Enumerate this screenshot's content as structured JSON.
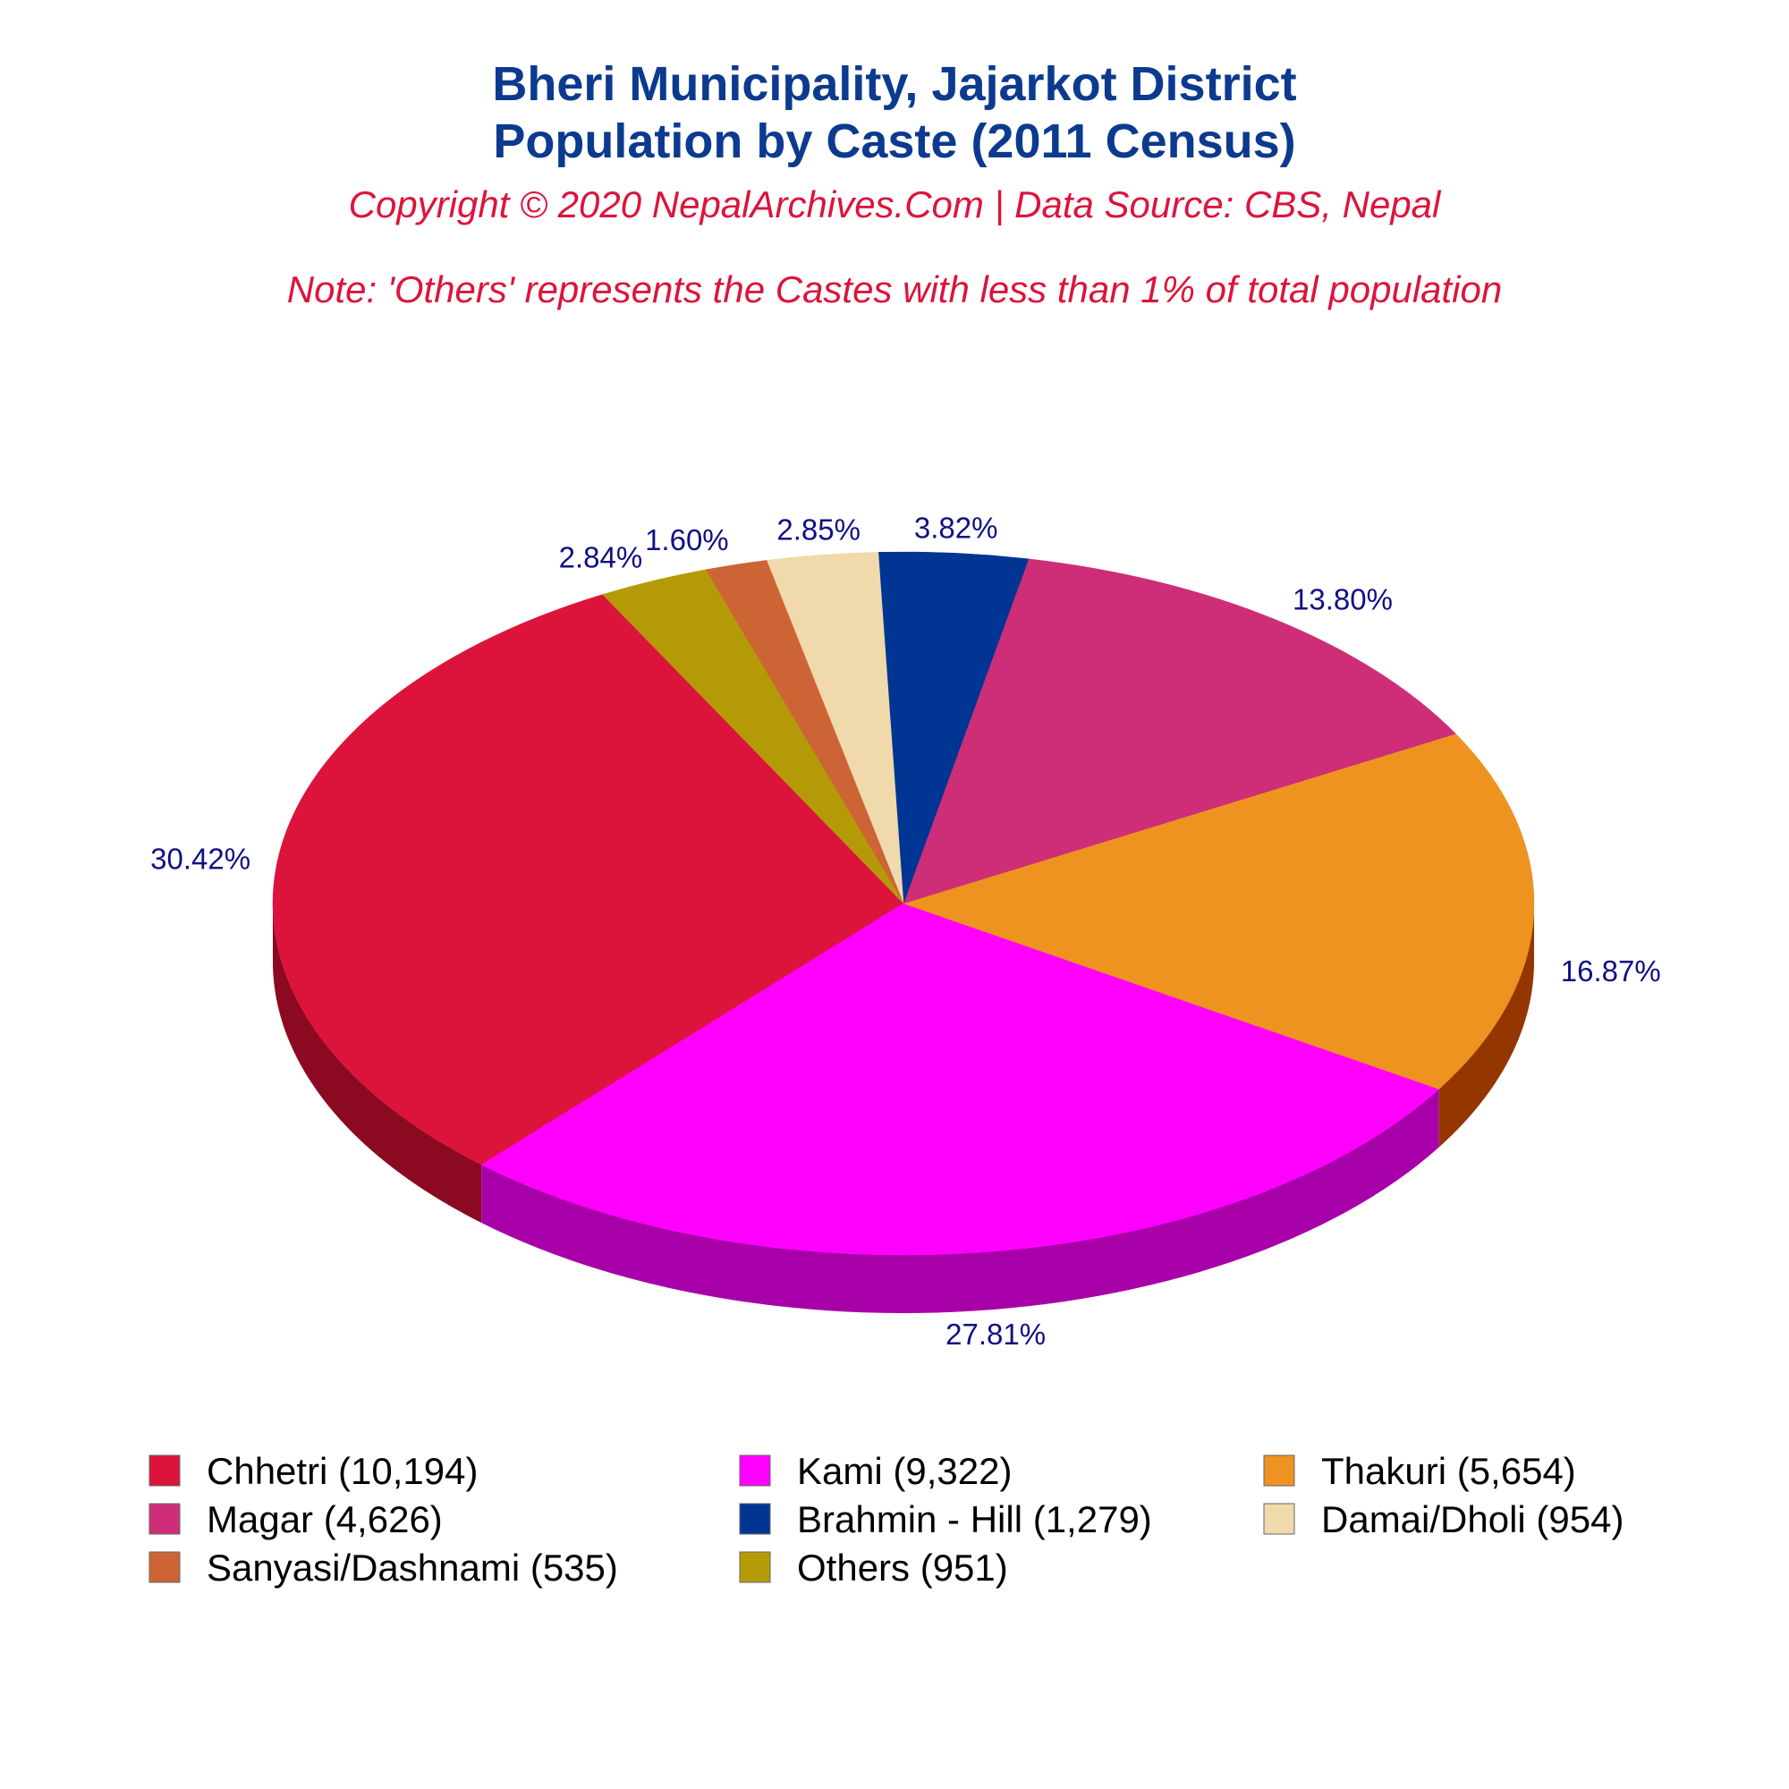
{
  "chart_data": {
    "type": "pie",
    "style": "3d",
    "title_line1": "Bheri Municipality, Jajarkot District",
    "title_line2": "Population by Caste (2011 Census)",
    "subtitle": "Copyright © 2020 NepalArchives.Com | Data Source: CBS, Nepal",
    "note": "Note: 'Others' represents the Castes with less than 1% of total population",
    "legend_position": "bottom",
    "slices": [
      {
        "name": "Chhetri",
        "value": 10194,
        "percent": "30.42%",
        "legend": "Chhetri (10,194)",
        "color": "#dc143c",
        "side_color": "#8b0a22"
      },
      {
        "name": "Kami",
        "value": 9322,
        "percent": "27.81%",
        "legend": "Kami (9,322)",
        "color": "#ff00ff",
        "side_color": "#a800a8"
      },
      {
        "name": "Thakuri",
        "value": 5654,
        "percent": "16.87%",
        "legend": "Thakuri (5,654)",
        "color": "#ee9220",
        "side_color": "#943600"
      },
      {
        "name": "Magar",
        "value": 4626,
        "percent": "13.80%",
        "legend": "Magar (4,626)",
        "color": "#cd2e77",
        "side_color": "#6e0024"
      },
      {
        "name": "Brahmin - Hill",
        "value": 1279,
        "percent": "3.82%",
        "legend": "Brahmin - Hill (1,279)",
        "color": "#003594",
        "side_color": "#001a55"
      },
      {
        "name": "Damai/Dholi",
        "value": 954,
        "percent": "2.85%",
        "legend": "Damai/Dholi (954)",
        "color": "#f0d9ab",
        "side_color": "#b8a27a"
      },
      {
        "name": "Sanyasi/Dashnami",
        "value": 535,
        "percent": "1.60%",
        "legend": "Sanyasi/Dashnami (535)",
        "color": "#cd6435",
        "side_color": "#8a3a18"
      },
      {
        "name": "Others",
        "value": 951,
        "percent": "2.84%",
        "legend": "Others (951)",
        "color": "#b59a07",
        "side_color": "#786600"
      }
    ]
  }
}
